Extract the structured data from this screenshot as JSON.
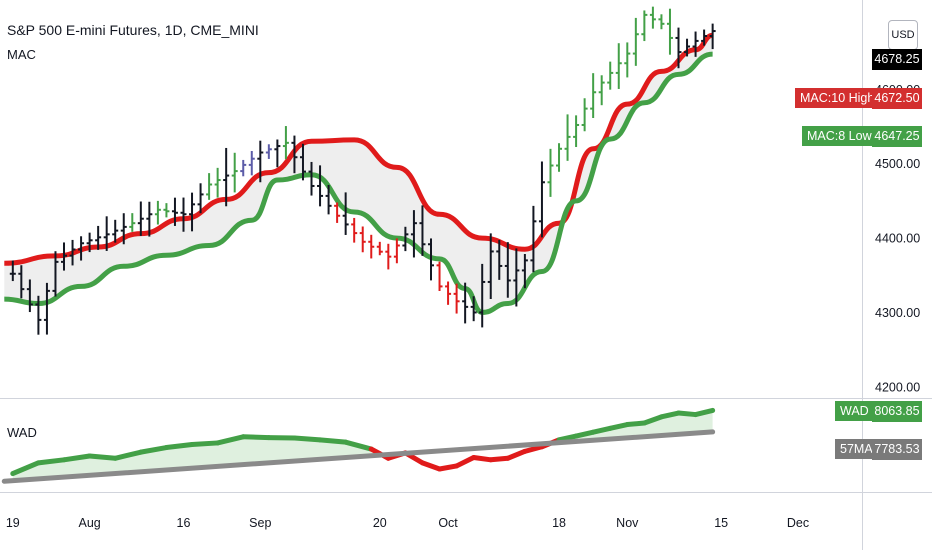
{
  "header": {
    "title": "S&P 500 E-mini Futures, 1D, CME_MINI",
    "indicator": "MAC",
    "currency": "USD"
  },
  "price_tags": {
    "last_price": "4678.25",
    "mac_high_label": "MAC:10 High",
    "mac_high_value": "4672.50",
    "mac_low_label": "MAC:8 Low",
    "mac_low_value": "4647.25"
  },
  "lower_panel": {
    "label": "WAD",
    "wad_label": "WAD",
    "wad_value": "8063.85",
    "ma_label": "57MA",
    "ma_value": "7783.53"
  },
  "colors": {
    "high_line": "#e01b1b",
    "low_line": "#43a047",
    "band_fill": "#eeeeee",
    "bar_up_green": "#43a047",
    "bar_blue": "#5c5ca8",
    "bar_red": "#e01b1b",
    "wad_green": "#43a047",
    "wad_red": "#e01b1b",
    "ma_grey": "#8a8a8a",
    "last_price_bg": "#000000"
  },
  "chart_data": [
    {
      "type": "line",
      "title": "S&P 500 E-mini Futures, 1D, CME_MINI",
      "y_axis_ticks": [
        4200,
        4300,
        4400,
        4500,
        4600
      ],
      "y_tick_labels": [
        "4200.00",
        "4300.00",
        "4400.00",
        "4500.00",
        "4600.00"
      ],
      "ylim": [
        4185,
        4720
      ],
      "x_tick_labels": [
        "19",
        "Aug",
        "16",
        "Sep",
        "20",
        "Oct",
        "18",
        "Nov",
        "15",
        "Dec"
      ],
      "x_tick_days": [
        0,
        9,
        20,
        29,
        43,
        51,
        64,
        72,
        83,
        92
      ],
      "xlim": [
        -1.5,
        99.5
      ],
      "series": [
        {
          "name": "MAC:10 High",
          "x": [
            -1,
            5,
            10,
            15,
            20,
            25,
            30,
            35,
            40,
            45,
            50,
            55,
            60,
            64,
            68,
            72,
            76,
            80,
            82
          ],
          "values": [
            4366,
            4376,
            4388,
            4406,
            4426,
            4452,
            4488,
            4530,
            4532,
            4495,
            4432,
            4400,
            4385,
            4420,
            4520,
            4580,
            4624,
            4653,
            4672.5
          ]
        },
        {
          "name": "MAC:8 Low",
          "x": [
            -1,
            3,
            8,
            13,
            18,
            23,
            28,
            31,
            35,
            40,
            45,
            50,
            53,
            55,
            58,
            62,
            66,
            70,
            74,
            78,
            82
          ],
          "values": [
            4318,
            4312,
            4335,
            4362,
            4377,
            4390,
            4424,
            4478,
            4485,
            4435,
            4400,
            4372,
            4332,
            4300,
            4312,
            4355,
            4450,
            4533,
            4582,
            4620,
            4647.25
          ]
        },
        {
          "name": "Price (close)",
          "x": [
            0,
            3,
            5,
            8,
            11,
            14,
            17,
            20,
            23,
            26,
            29,
            32,
            35,
            38,
            41,
            44,
            47,
            50,
            52,
            54,
            56,
            58,
            60,
            62,
            64,
            66,
            68,
            70,
            72,
            74,
            76,
            78,
            80,
            82
          ],
          "values": [
            4352,
            4290,
            4368,
            4393,
            4405,
            4420,
            4438,
            4432,
            4472,
            4490,
            4515,
            4528,
            4470,
            4430,
            4395,
            4375,
            4420,
            4335,
            4315,
            4300,
            4382,
            4343,
            4370,
            4475,
            4520,
            4552,
            4596,
            4622,
            4648,
            4700,
            4688,
            4650,
            4665,
            4678.25
          ]
        }
      ],
      "last_price": 4678.25
    },
    {
      "type": "area",
      "title": "WAD",
      "xlim": [
        -1.5,
        99.5
      ],
      "series": [
        {
          "name": "WAD",
          "x": [
            0,
            3,
            6,
            9,
            12,
            15,
            18,
            21,
            24,
            27,
            30,
            33,
            36,
            39,
            42,
            44,
            46,
            48,
            50,
            52,
            54,
            56,
            58,
            60,
            62,
            64,
            66,
            68,
            70,
            72,
            74,
            76,
            78,
            80,
            82
          ],
          "values": [
            7240,
            7380,
            7420,
            7470,
            7440,
            7520,
            7580,
            7620,
            7640,
            7720,
            7710,
            7705,
            7680,
            7650,
            7560,
            7440,
            7510,
            7380,
            7300,
            7340,
            7450,
            7420,
            7440,
            7530,
            7590,
            7680,
            7730,
            7780,
            7830,
            7880,
            7900,
            7980,
            8030,
            8010,
            8063.85
          ]
        },
        {
          "name": "57MA",
          "x": [
            -1,
            82
          ],
          "values": [
            7140,
            7783.53
          ]
        }
      ],
      "ylim": [
        7000,
        8200
      ]
    }
  ]
}
